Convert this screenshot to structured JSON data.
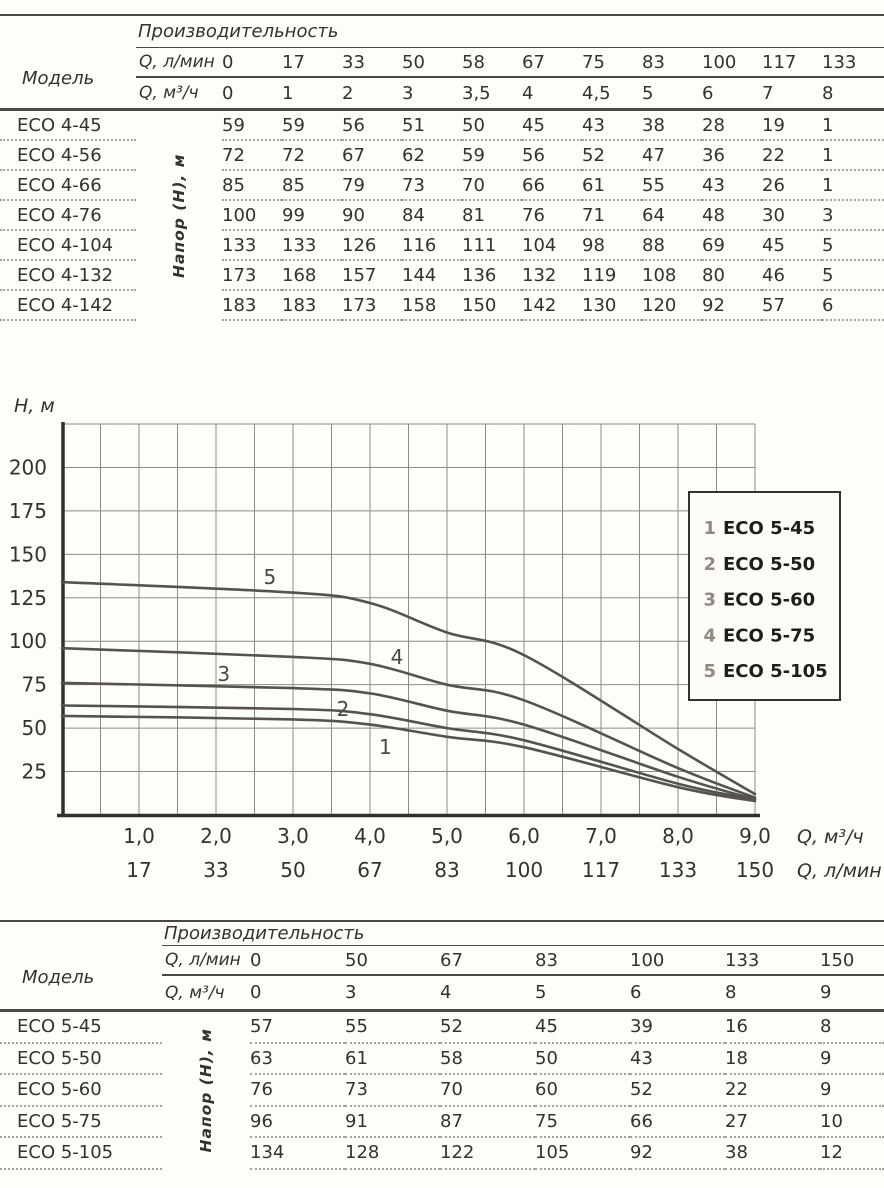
{
  "table_eco4": {
    "model_header": "Модель",
    "perf_header": "Производительность",
    "q_lmin_label": "Q, л/мин",
    "q_m3h_label": "Q, м³/ч",
    "napor_label": "Напор (Н), м",
    "q_lmin": [
      "0",
      "17",
      "33",
      "50",
      "58",
      "67",
      "75",
      "83",
      "100",
      "117",
      "133"
    ],
    "q_m3h": [
      "0",
      "1",
      "2",
      "3",
      "3,5",
      "4",
      "4,5",
      "5",
      "6",
      "7",
      "8"
    ],
    "rows": [
      {
        "model": "ECO 4-45",
        "values": [
          "59",
          "59",
          "56",
          "51",
          "50",
          "45",
          "43",
          "38",
          "28",
          "19",
          "1"
        ]
      },
      {
        "model": "ECO 4-56",
        "values": [
          "72",
          "72",
          "67",
          "62",
          "59",
          "56",
          "52",
          "47",
          "36",
          "22",
          "1"
        ]
      },
      {
        "model": "ECO 4-66",
        "values": [
          "85",
          "85",
          "79",
          "73",
          "70",
          "66",
          "61",
          "55",
          "43",
          "26",
          "1"
        ]
      },
      {
        "model": "ECO 4-76",
        "values": [
          "100",
          "99",
          "90",
          "84",
          "81",
          "76",
          "71",
          "64",
          "48",
          "30",
          "3"
        ]
      },
      {
        "model": "ECO 4-104",
        "values": [
          "133",
          "133",
          "126",
          "116",
          "111",
          "104",
          "98",
          "88",
          "69",
          "45",
          "5"
        ]
      },
      {
        "model": "ECO 4-132",
        "values": [
          "173",
          "168",
          "157",
          "144",
          "136",
          "132",
          "119",
          "108",
          "80",
          "46",
          "5"
        ]
      },
      {
        "model": "ECO 4-142",
        "values": [
          "183",
          "183",
          "173",
          "158",
          "150",
          "142",
          "130",
          "120",
          "92",
          "57",
          "6"
        ]
      }
    ]
  },
  "table_eco5": {
    "model_header": "Модель",
    "perf_header": "Производительность",
    "q_lmin_label": "Q, л/мин",
    "q_m3h_label": "Q, м³/ч",
    "napor_label": "Напор (Н), м",
    "q_lmin": [
      "0",
      "50",
      "67",
      "83",
      "100",
      "133",
      "150"
    ],
    "q_m3h": [
      "0",
      "3",
      "4",
      "5",
      "6",
      "8",
      "9"
    ],
    "rows": [
      {
        "model": "ECO 5-45",
        "values": [
          "57",
          "55",
          "52",
          "45",
          "39",
          "16",
          "8"
        ]
      },
      {
        "model": "ECO 5-50",
        "values": [
          "63",
          "61",
          "58",
          "50",
          "43",
          "18",
          "9"
        ]
      },
      {
        "model": "ECO 5-60",
        "values": [
          "76",
          "73",
          "70",
          "60",
          "52",
          "22",
          "9"
        ]
      },
      {
        "model": "ECO 5-75",
        "values": [
          "96",
          "91",
          "87",
          "75",
          "66",
          "27",
          "10"
        ]
      },
      {
        "model": "ECO 5-105",
        "values": [
          "134",
          "128",
          "122",
          "105",
          "92",
          "38",
          "12"
        ]
      }
    ]
  },
  "chart_data": {
    "type": "line",
    "title": "",
    "ylabel": "H, м",
    "xlabel_primary": "Q, м³/ч",
    "xlabel_secondary": "Q, л/мин",
    "xlim": [
      0,
      9
    ],
    "ylim": [
      0,
      225
    ],
    "grid": true,
    "legend_position": "right",
    "x": [
      0,
      3,
      4,
      5,
      6,
      8,
      9
    ],
    "x_ticks_m3h": [
      "1,0",
      "2,0",
      "3,0",
      "4,0",
      "5,0",
      "6,0",
      "7,0",
      "8,0",
      "9,0"
    ],
    "x_tick_positions": [
      1,
      2,
      3,
      4,
      5,
      6,
      7,
      8,
      9
    ],
    "x_ticks_lmin": [
      "17",
      "33",
      "50",
      "67",
      "83",
      "100",
      "117",
      "133",
      "150"
    ],
    "y_ticks": [
      200,
      175,
      150,
      125,
      100,
      75,
      50,
      25
    ],
    "series": [
      {
        "num": "1",
        "name": "ECO 5-45",
        "values": [
          57,
          55,
          52,
          45,
          39,
          16,
          8
        ],
        "label_pos": {
          "x": 4.2,
          "y": 39
        }
      },
      {
        "num": "2",
        "name": "ECO 5-50",
        "values": [
          63,
          61,
          58,
          50,
          43,
          18,
          9
        ],
        "label_pos": {
          "x": 3.65,
          "y": 61
        }
      },
      {
        "num": "3",
        "name": "ECO 5-60",
        "values": [
          76,
          73,
          70,
          60,
          52,
          22,
          9
        ],
        "label_pos": {
          "x": 2.1,
          "y": 81
        }
      },
      {
        "num": "4",
        "name": "ECO 5-75",
        "values": [
          96,
          91,
          87,
          75,
          66,
          27,
          10
        ],
        "label_pos": {
          "x": 4.35,
          "y": 91
        }
      },
      {
        "num": "5",
        "name": "ECO 5-105",
        "values": [
          134,
          128,
          122,
          105,
          92,
          38,
          12
        ],
        "label_pos": {
          "x": 2.7,
          "y": 137
        }
      }
    ],
    "colors": {
      "curve": "#56534c",
      "grid": "#8e8b82",
      "axis": "#32302a",
      "text": "#35322b",
      "legend_number": "#8f8b82",
      "legend_name": "#201e19",
      "legend_border": "#35322c",
      "legend_bg": "#fdfcf8"
    }
  }
}
